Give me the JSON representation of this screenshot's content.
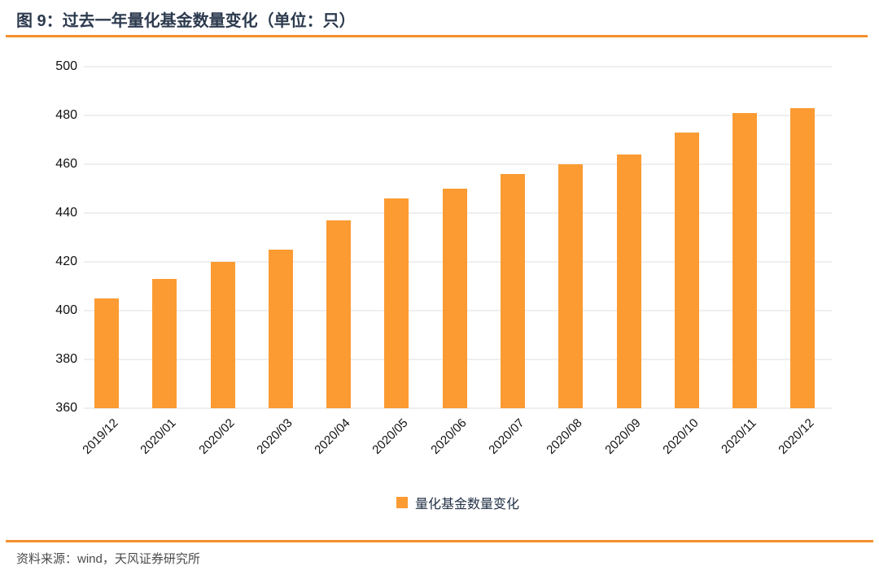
{
  "header": {
    "title": "图 9：过去一年量化基金数量变化（单位：只）"
  },
  "chart_data": {
    "type": "bar",
    "title": "图 9：过去一年量化基金数量变化（单位：只）",
    "categories": [
      "2019/12",
      "2020/01",
      "2020/02",
      "2020/03",
      "2020/04",
      "2020/05",
      "2020/06",
      "2020/07",
      "2020/08",
      "2020/09",
      "2020/10",
      "2020/11",
      "2020/12"
    ],
    "values": [
      405,
      413,
      420,
      425,
      437,
      446,
      450,
      456,
      460,
      464,
      473,
      481,
      483
    ],
    "legend": "量化基金数量变化",
    "legend_position": "bottom",
    "xlabel": "",
    "ylabel": "",
    "ylim": [
      360,
      500
    ],
    "ytick_step": 20,
    "grid": true,
    "bar_color": "#FB9B32"
  },
  "footer": {
    "source": "资料来源：wind，天风证券研究所"
  },
  "colors": {
    "accent_orange": "#F5902C",
    "bar_orange": "#FB9B32",
    "title_navy": "#2C3A4E",
    "gridline_gray": "#EFEFEF",
    "tick_text": "#111111",
    "source_gray": "#4A4A4A"
  }
}
